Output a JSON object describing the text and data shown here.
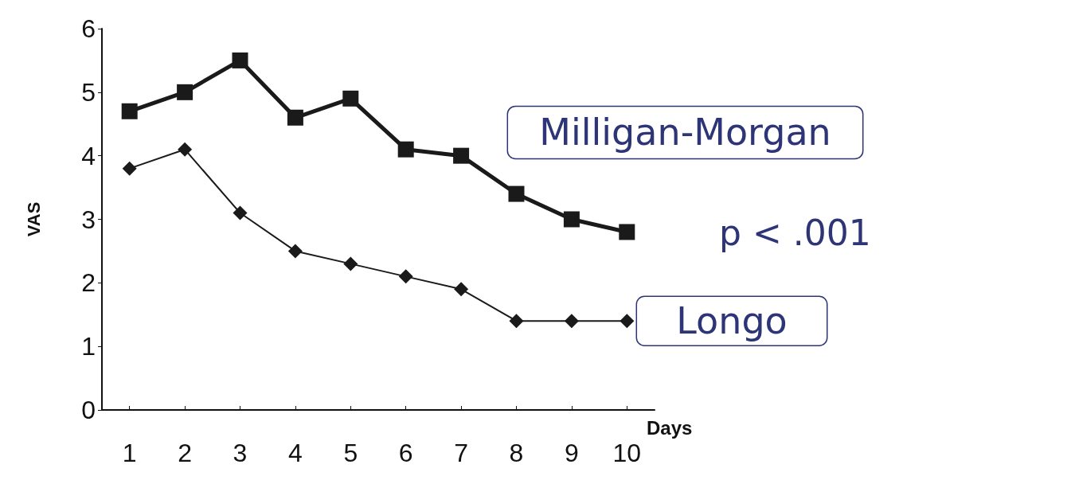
{
  "chart_data": {
    "type": "line",
    "xlabel": "Days",
    "ylabel": "VAS",
    "categories": [
      "1",
      "2",
      "3",
      "4",
      "5",
      "6",
      "7",
      "8",
      "9",
      "10"
    ],
    "ylim": [
      0,
      6
    ],
    "yticks": [
      0,
      1,
      2,
      3,
      4,
      5,
      6
    ],
    "grid": false,
    "line_style": "solid",
    "series": [
      {
        "name": "Milligan-Morgan",
        "color": "#1a1a1a",
        "marker": "square",
        "values": [
          4.7,
          5.0,
          5.5,
          4.6,
          4.9,
          4.1,
          4.0,
          3.4,
          3.0,
          2.8
        ]
      },
      {
        "name": "Longo",
        "color": "#1a1a1a",
        "marker": "diamond",
        "values": [
          3.8,
          4.1,
          3.1,
          2.5,
          2.3,
          2.1,
          1.9,
          1.4,
          1.4,
          1.4
        ]
      }
    ],
    "annotations": [
      "p < .001"
    ]
  }
}
